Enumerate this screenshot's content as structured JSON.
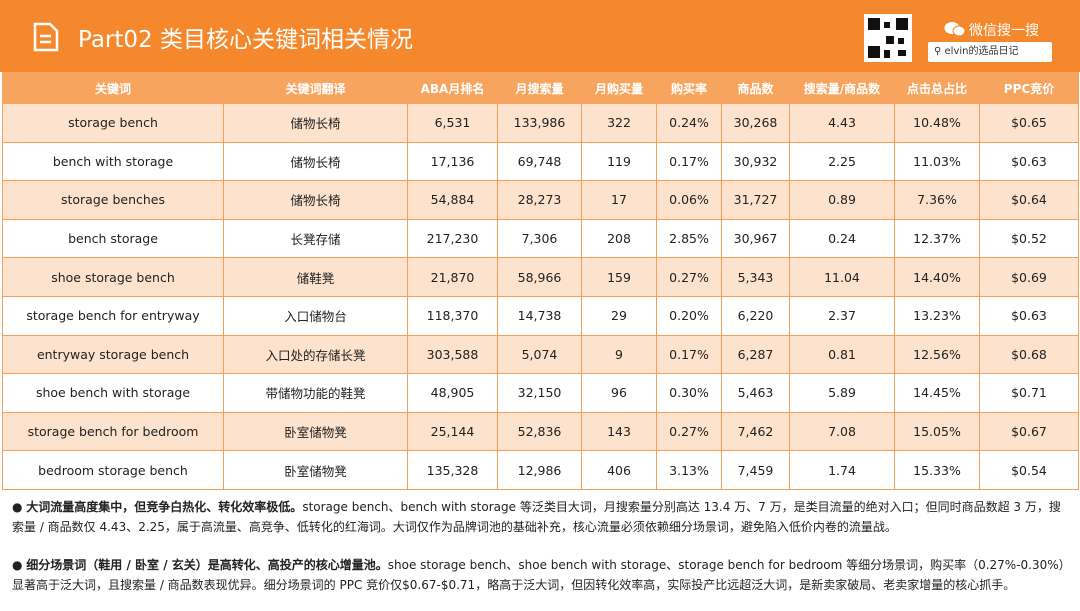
{
  "header": {
    "title": "Part02 类目核心关键词相关情况",
    "wechat": "微信搜一搜",
    "search": "elvin的选品日记"
  },
  "table": {
    "columns": [
      "关键词",
      "关键词翻译",
      "ABA月排名",
      "月搜索量",
      "月购买量",
      "购买率",
      "商品数",
      "搜索量/商品数",
      "点击总占比",
      "PPC竞价"
    ],
    "rows": [
      [
        "storage bench",
        "储物长椅",
        "6,531",
        "133,986",
        "322",
        "0.24%",
        "30,268",
        "4.43",
        "10.48%",
        "$0.65"
      ],
      [
        "bench with storage",
        "储物长椅",
        "17,136",
        "69,748",
        "119",
        "0.17%",
        "30,932",
        "2.25",
        "11.03%",
        "$0.63"
      ],
      [
        "storage benches",
        "储物长椅",
        "54,884",
        "28,273",
        "17",
        "0.06%",
        "31,727",
        "0.89",
        "7.36%",
        "$0.64"
      ],
      [
        "bench storage",
        "长凳存储",
        "217,230",
        "7,306",
        "208",
        "2.85%",
        "30,967",
        "0.24",
        "12.37%",
        "$0.52"
      ],
      [
        "shoe storage bench",
        "储鞋凳",
        "21,870",
        "58,966",
        "159",
        "0.27%",
        "5,343",
        "11.04",
        "14.40%",
        "$0.69"
      ],
      [
        "storage bench for entryway",
        "入口储物台",
        "118,370",
        "14,738",
        "29",
        "0.20%",
        "6,220",
        "2.37",
        "13.23%",
        "$0.63"
      ],
      [
        "entryway storage bench",
        "入口处的存储长凳",
        "303,588",
        "5,074",
        "9",
        "0.17%",
        "6,287",
        "0.81",
        "12.56%",
        "$0.68"
      ],
      [
        "shoe bench with storage",
        "带储物功能的鞋凳",
        "48,905",
        "32,150",
        "96",
        "0.30%",
        "5,463",
        "5.89",
        "14.45%",
        "$0.71"
      ],
      [
        "storage bench for bedroom",
        "卧室储物凳",
        "25,144",
        "52,836",
        "143",
        "0.27%",
        "7,462",
        "7.08",
        "15.05%",
        "$0.67"
      ],
      [
        "bedroom storage bench",
        "卧室储物凳",
        "135,328",
        "12,986",
        "406",
        "3.13%",
        "7,459",
        "1.74",
        "15.33%",
        "$0.54"
      ]
    ]
  },
  "bullets": [
    {
      "bold": "大词流量高度集中，但竞争白热化、转化效率极低。",
      "text": "storage bench、bench with storage 等泛类目大词，月搜索量分别高达 13.4 万、7 万，是类目流量的绝对入口；但同时商品数超 3 万，搜索量 / 商品数仅 4.43、2.25，属于高流量、高竞争、低转化的红海词。大词仅作为品牌词池的基础补充，核心流量必须依赖细分场景词，避免陷入低价内卷的流量战。"
    },
    {
      "bold": "细分场景词（鞋用 / 卧室 / 玄关）是高转化、高投产的核心增量池。",
      "text": "shoe storage bench、shoe bench with storage、storage bench for bedroom 等细分场景词，购买率（0.27%-0.30%）显著高于泛大词，且搜索量 / 商品数表现优异。细分场景词的 PPC 竞价仅$0.67-$0.71，略高于泛大词，但因转化效率高，实际投产比远超泛大词，是新卖家破局、老卖家增量的核心抓手。"
    }
  ]
}
